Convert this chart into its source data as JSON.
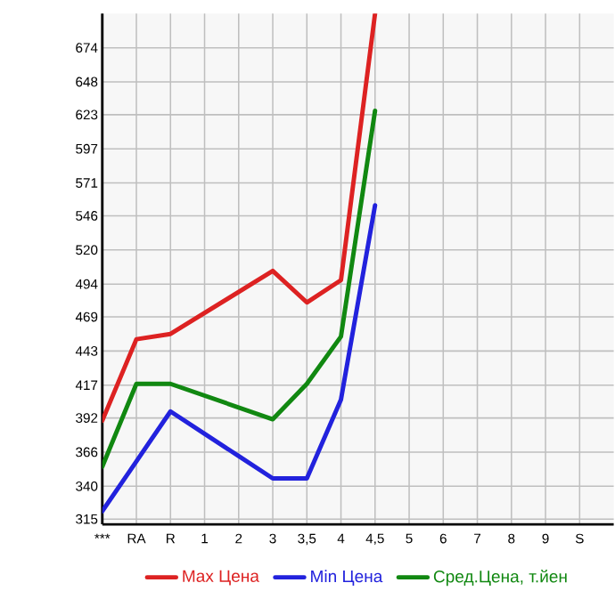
{
  "chart_data": {
    "type": "line",
    "categories": [
      "***",
      "RA",
      "R",
      "1",
      "2",
      "3",
      "3,5",
      "4",
      "4,5",
      "5",
      "6",
      "7",
      "8",
      "9",
      "S"
    ],
    "series": [
      {
        "name": "Max Цена",
        "color": "#dd2222",
        "values": [
          390,
          452,
          456,
          472,
          488,
          504,
          480,
          497,
          700,
          null,
          null,
          null,
          null,
          null,
          null
        ]
      },
      {
        "name": "Min Цена",
        "color": "#2222dd",
        "values": [
          321,
          359,
          397,
          380,
          363,
          346,
          346,
          406,
          554,
          null,
          null,
          null,
          null,
          null,
          null
        ]
      },
      {
        "name": "Сред.Цена, т.йен",
        "color": "#118811",
        "values": [
          355,
          418,
          418,
          409,
          400,
          391,
          418,
          454,
          626,
          null,
          null,
          null,
          null,
          null,
          null
        ]
      }
    ],
    "ylim": [
      311,
      700
    ],
    "yticks": [
      315,
      340,
      366,
      392,
      417,
      443,
      469,
      494,
      520,
      546,
      571,
      597,
      623,
      648,
      674
    ],
    "grid": true,
    "legend": "bottom",
    "marker": "none",
    "line_style": "solid"
  }
}
